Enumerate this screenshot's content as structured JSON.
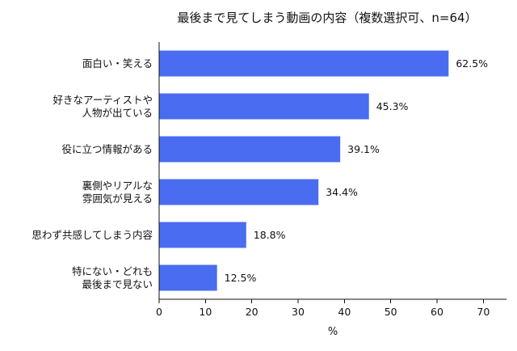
{
  "chart_data": {
    "type": "bar",
    "orientation": "horizontal",
    "title": "最後まで見てしまう動画の内容（複数選択可、n=64）",
    "xlabel": "%",
    "ylabel": "",
    "xlim": [
      0,
      75
    ],
    "xticks": [
      0,
      10,
      20,
      30,
      40,
      50,
      60,
      70
    ],
    "categories": [
      [
        "面白い・笑える"
      ],
      [
        "好きなアーティストや",
        "人物が出ている"
      ],
      [
        "役に立つ情報がある"
      ],
      [
        "裏側やリアルな",
        "雰囲気が見える"
      ],
      [
        "思わず共感してしまう内容"
      ],
      [
        "特にない・どれも",
        "最後まで見ない"
      ]
    ],
    "values": [
      62.5,
      45.3,
      39.1,
      34.4,
      18.8,
      12.5
    ],
    "value_labels": [
      "62.5%",
      "45.3%",
      "39.1%",
      "34.4%",
      "18.8%",
      "12.5%"
    ],
    "bar_color": "#4a6cf0",
    "grid": false,
    "legend": "none"
  }
}
